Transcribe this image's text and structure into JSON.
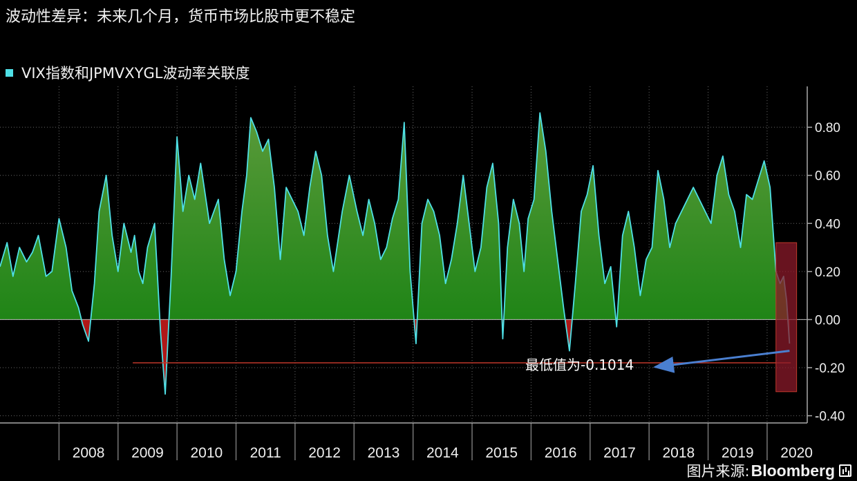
{
  "title": "波动性差异：未来几个月，货币市场比股市更不稳定",
  "source": {
    "label": "图片来源:",
    "brand": "Bloomberg"
  },
  "colors": {
    "line": "#4fe0e6",
    "fill_top": "#5a9a3a",
    "fill_bottom": "#0a7d0a",
    "negative_fill": "#b01818",
    "min_line": "#c0392b",
    "highlight_box": "#8b1a2a",
    "arrow": "#4a7fd0",
    "grid": "#6a6a6a"
  },
  "chart_data": {
    "type": "area",
    "title": "",
    "series": [
      {
        "name": "VIX指数和JPMVXYGL波动率关联度",
        "x": [
          2007.0,
          2007.12,
          2007.22,
          2007.33,
          2007.45,
          2007.55,
          2007.65,
          2007.78,
          2007.88,
          2008.0,
          2008.12,
          2008.22,
          2008.33,
          2008.4,
          2008.5,
          2008.6,
          2008.68,
          2008.8,
          2008.9,
          2009.0,
          2009.1,
          2009.22,
          2009.28,
          2009.35,
          2009.42,
          2009.5,
          2009.62,
          2009.72,
          2009.8,
          2009.9,
          2010.0,
          2010.1,
          2010.2,
          2010.3,
          2010.4,
          2010.55,
          2010.7,
          2010.8,
          2010.9,
          2011.0,
          2011.1,
          2011.18,
          2011.25,
          2011.35,
          2011.45,
          2011.55,
          2011.65,
          2011.75,
          2011.85,
          2011.95,
          2012.05,
          2012.15,
          2012.25,
          2012.35,
          2012.45,
          2012.55,
          2012.65,
          2012.8,
          2012.92,
          2013.05,
          2013.15,
          2013.25,
          2013.35,
          2013.45,
          2013.55,
          2013.65,
          2013.75,
          2013.85,
          2013.95,
          2014.05,
          2014.15,
          2014.25,
          2014.35,
          2014.45,
          2014.55,
          2014.65,
          2014.75,
          2014.85,
          2014.95,
          2015.05,
          2015.15,
          2015.25,
          2015.35,
          2015.45,
          2015.52,
          2015.6,
          2015.7,
          2015.8,
          2015.88,
          2015.95,
          2016.05,
          2016.15,
          2016.25,
          2016.35,
          2016.45,
          2016.55,
          2016.65,
          2016.75,
          2016.85,
          2016.95,
          2017.05,
          2017.15,
          2017.25,
          2017.35,
          2017.45,
          2017.55,
          2017.65,
          2017.75,
          2017.85,
          2017.95,
          2018.05,
          2018.15,
          2018.25,
          2018.35,
          2018.45,
          2018.55,
          2018.65,
          2018.75,
          2018.85,
          2018.95,
          2019.05,
          2019.15,
          2019.25,
          2019.35,
          2019.45,
          2019.55,
          2019.65,
          2019.75,
          2019.85,
          2019.95,
          2020.05,
          2020.15,
          2020.22,
          2020.28,
          2020.33,
          2020.38
        ],
        "y": [
          0.22,
          0.32,
          0.18,
          0.3,
          0.24,
          0.28,
          0.35,
          0.18,
          0.2,
          0.42,
          0.3,
          0.12,
          0.05,
          -0.02,
          -0.09,
          0.15,
          0.45,
          0.6,
          0.35,
          0.2,
          0.4,
          0.28,
          0.35,
          0.2,
          0.15,
          0.3,
          0.4,
          -0.05,
          -0.31,
          0.18,
          0.76,
          0.45,
          0.6,
          0.5,
          0.65,
          0.4,
          0.5,
          0.25,
          0.1,
          0.2,
          0.45,
          0.6,
          0.84,
          0.78,
          0.7,
          0.75,
          0.55,
          0.25,
          0.55,
          0.5,
          0.45,
          0.35,
          0.55,
          0.7,
          0.6,
          0.35,
          0.2,
          0.45,
          0.6,
          0.45,
          0.35,
          0.5,
          0.4,
          0.25,
          0.3,
          0.42,
          0.5,
          0.82,
          0.2,
          -0.1,
          0.4,
          0.5,
          0.45,
          0.35,
          0.15,
          0.25,
          0.4,
          0.6,
          0.4,
          0.2,
          0.3,
          0.55,
          0.65,
          0.4,
          -0.08,
          0.3,
          0.5,
          0.4,
          0.2,
          0.42,
          0.5,
          0.86,
          0.7,
          0.45,
          0.25,
          0.05,
          -0.13,
          0.15,
          0.45,
          0.52,
          0.64,
          0.35,
          0.15,
          0.22,
          -0.03,
          0.35,
          0.45,
          0.3,
          0.1,
          0.25,
          0.3,
          0.62,
          0.5,
          0.3,
          0.4,
          0.45,
          0.5,
          0.55,
          0.5,
          0.45,
          0.4,
          0.6,
          0.68,
          0.52,
          0.45,
          0.3,
          0.52,
          0.5,
          0.58,
          0.66,
          0.55,
          0.2,
          0.15,
          0.18,
          0.08,
          -0.1
        ]
      }
    ],
    "xlim": [
      2007.0,
      2020.68
    ],
    "x_tick_labels": [
      "2008",
      "2009",
      "2010",
      "2011",
      "2012",
      "2013",
      "2014",
      "2015",
      "2016",
      "2017",
      "2018",
      "2019",
      "2020"
    ],
    "y_tick_values": [
      0.8,
      0.6,
      0.4,
      0.2,
      0.0,
      -0.2,
      -0.4
    ],
    "y_tick_labels": [
      "0.80",
      "0.60",
      "0.40",
      "0.20",
      "0.00",
      "-0.20",
      "-0.40"
    ],
    "ylim": [
      -0.43,
      0.97
    ],
    "y_axis_position": "right",
    "grid": true,
    "legend_position": "top-left",
    "min_reference_value": -0.18,
    "highlight_range": {
      "x": [
        2020.15,
        2020.5
      ],
      "y": [
        -0.3,
        0.32
      ]
    },
    "annotation": {
      "text": "最低值为-0.1014",
      "point": [
        2020.38,
        -0.13
      ]
    }
  }
}
